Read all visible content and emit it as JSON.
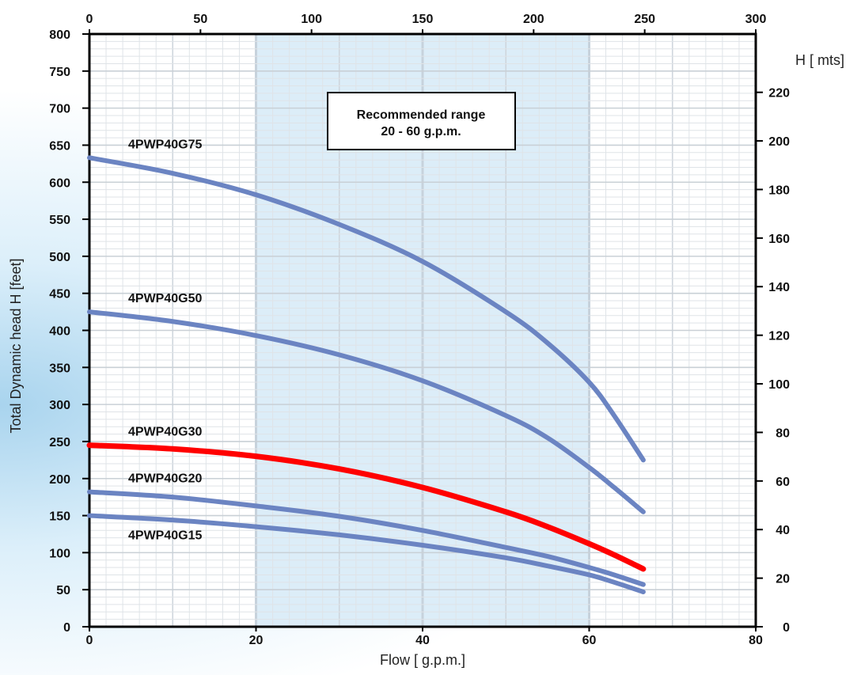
{
  "chart_data": {
    "type": "line",
    "title": "",
    "xlabel": "Flow [ g.p.m.]",
    "ylabel": "Total Dynamic head H [feet]",
    "y2label": "H [ mts]",
    "xlim": [
      0,
      80
    ],
    "ylim": [
      0,
      800
    ],
    "xticks": [
      0,
      20,
      40,
      60,
      80
    ],
    "yticks": [
      0,
      50,
      100,
      150,
      200,
      250,
      300,
      350,
      400,
      450,
      500,
      550,
      600,
      650,
      700,
      750,
      800
    ],
    "x2_unit_range": [
      0,
      300
    ],
    "x2ticks": [
      0,
      50,
      100,
      150,
      200,
      250,
      300
    ],
    "y2_unit_range": [
      0,
      244
    ],
    "y2ticks": [
      0,
      20,
      40,
      60,
      80,
      100,
      120,
      140,
      160,
      180,
      200,
      220
    ],
    "grid": true,
    "recommended_range": {
      "x_start": 20,
      "x_end": 60,
      "line1": "Recommended range",
      "line2": "20 - 60 g.p.m."
    },
    "series": [
      {
        "name": "4PWP40G75",
        "color": "#6b84c2",
        "width": 6,
        "points": [
          [
            0,
            633
          ],
          [
            10,
            612
          ],
          [
            20,
            583
          ],
          [
            30,
            543
          ],
          [
            40,
            493
          ],
          [
            50,
            425
          ],
          [
            55,
            383
          ],
          [
            60,
            330
          ],
          [
            63,
            285
          ],
          [
            66.5,
            225
          ]
        ]
      },
      {
        "name": "4PWP40G50",
        "color": "#6b84c2",
        "width": 6,
        "points": [
          [
            0,
            425
          ],
          [
            10,
            412
          ],
          [
            20,
            393
          ],
          [
            30,
            367
          ],
          [
            40,
            332
          ],
          [
            50,
            285
          ],
          [
            55,
            255
          ],
          [
            60,
            215
          ],
          [
            63,
            188
          ],
          [
            66.5,
            155
          ]
        ]
      },
      {
        "name": "4PWP40G30",
        "color": "#ff0000",
        "width": 7,
        "points": [
          [
            0,
            245
          ],
          [
            10,
            240
          ],
          [
            20,
            230
          ],
          [
            30,
            213
          ],
          [
            40,
            188
          ],
          [
            50,
            155
          ],
          [
            55,
            135
          ],
          [
            60,
            112
          ],
          [
            63,
            97
          ],
          [
            66.5,
            78
          ]
        ]
      },
      {
        "name": "4PWP40G20",
        "color": "#6b84c2",
        "width": 6,
        "points": [
          [
            0,
            182
          ],
          [
            10,
            175
          ],
          [
            20,
            163
          ],
          [
            30,
            149
          ],
          [
            40,
            130
          ],
          [
            50,
            107
          ],
          [
            55,
            95
          ],
          [
            60,
            80
          ],
          [
            63,
            70
          ],
          [
            66.5,
            57
          ]
        ]
      },
      {
        "name": "4PWP40G15",
        "color": "#6b84c2",
        "width": 6,
        "points": [
          [
            0,
            150
          ],
          [
            10,
            144
          ],
          [
            20,
            135
          ],
          [
            30,
            124
          ],
          [
            40,
            110
          ],
          [
            50,
            93
          ],
          [
            55,
            82
          ],
          [
            60,
            70
          ],
          [
            63,
            60
          ],
          [
            66.5,
            47
          ]
        ]
      }
    ]
  }
}
